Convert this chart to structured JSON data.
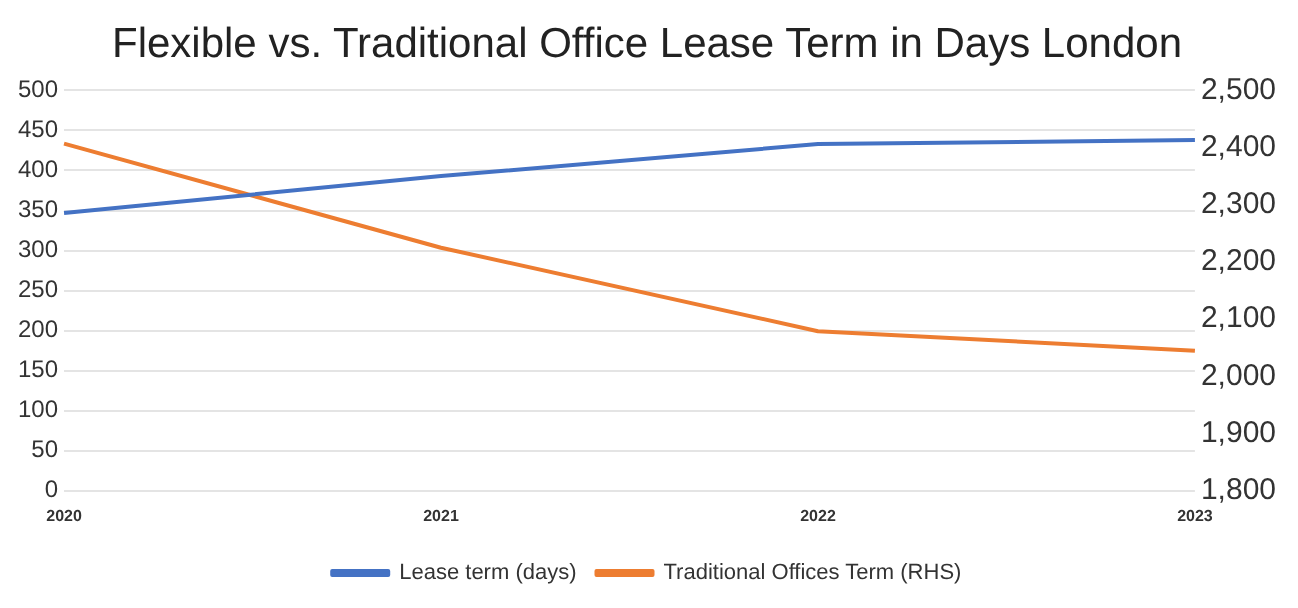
{
  "chart_data": {
    "type": "line",
    "title": "Flexible vs. Traditional Office Lease Term in Days London",
    "categories": [
      "2020",
      "2021",
      "2022",
      "2023"
    ],
    "series": [
      {
        "name": "Lease term (days)",
        "color": "#4472c4",
        "values": [
          347,
          393,
          433,
          438
        ]
      },
      {
        "name": "Traditional Offices Term (RHS)",
        "color": "#ed7d31",
        "values": [
          2407,
          2225,
          2079,
          2045
        ],
        "axis": "y2"
      }
    ],
    "ylim": [
      0,
      500
    ],
    "yticks": [
      0,
      50,
      100,
      150,
      200,
      250,
      300,
      350,
      400,
      450,
      500
    ],
    "y2lim": [
      1800,
      2500
    ],
    "y2ticks": [
      {
        "value": 1800,
        "label": "1,800"
      },
      {
        "value": 1900,
        "label": "1,900"
      },
      {
        "value": 2000,
        "label": "2,000"
      },
      {
        "value": 2100,
        "label": "2,100"
      },
      {
        "value": 2200,
        "label": "2,200"
      },
      {
        "value": 2300,
        "label": "2,300"
      },
      {
        "value": 2400,
        "label": "2,400"
      },
      {
        "value": 2500,
        "label": "2,500"
      }
    ],
    "grid": "y",
    "legend": "bottom",
    "marker": "none",
    "line_style": "solid"
  }
}
